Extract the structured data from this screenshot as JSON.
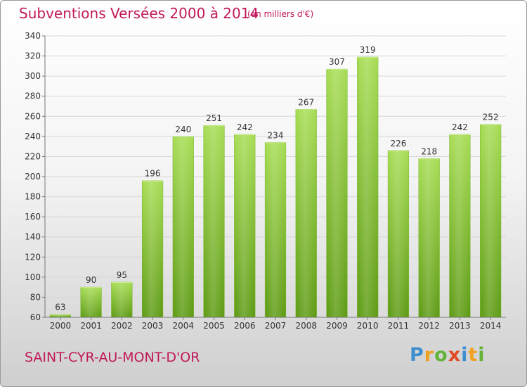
{
  "header": {
    "title": "Subventions Versées 2000 à 2014",
    "unit_note": "(en milliers d'€)"
  },
  "footer": {
    "place": "SAINT-CYR-AU-MONT-D'OR",
    "logo_text": "Proxiti"
  },
  "colors": {
    "title": "#c0185a",
    "bar_light": "#a6dc52",
    "bar_dark": "#5c9a12",
    "grid": "#d6d6d6"
  },
  "chart_data": {
    "type": "bar",
    "title": "Subventions Versées 2000 à 2014",
    "subtitle": "(en milliers d'€)",
    "categories": [
      "2000",
      "2001",
      "2002",
      "2003",
      "2004",
      "2005",
      "2006",
      "2007",
      "2008",
      "2009",
      "2010",
      "2011",
      "2012",
      "2013",
      "2014"
    ],
    "values": [
      63,
      90,
      95,
      196,
      240,
      251,
      242,
      234,
      267,
      307,
      319,
      226,
      218,
      242,
      252
    ],
    "ylim": [
      60,
      340
    ],
    "yticks": [
      60,
      80,
      100,
      120,
      140,
      160,
      180,
      200,
      220,
      240,
      260,
      280,
      300,
      320,
      340
    ],
    "grid": true,
    "data_labels": true
  }
}
